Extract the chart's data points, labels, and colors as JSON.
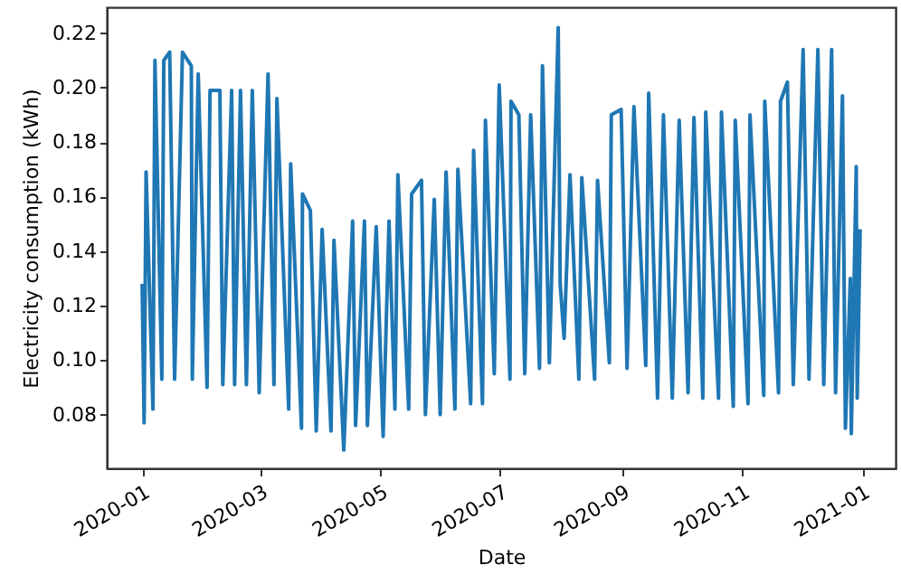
{
  "chart_data": {
    "type": "line",
    "xlabel": "Date",
    "ylabel": "Electricity consumption (kWh)",
    "xlim": [
      "2019-12-14",
      "2021-01-18"
    ],
    "xticks": [
      "2020-01",
      "2020-03",
      "2020-05",
      "2020-07",
      "2020-09",
      "2020-11",
      "2021-01"
    ],
    "ylim": [
      0.0603,
      0.2295
    ],
    "yticks": [
      0.08,
      {
        "value": 0.1,
        "label": "0.10"
      },
      0.12,
      0.14,
      0.16,
      0.18,
      {
        "value": 0.2,
        "label": "0.20"
      },
      0.22
    ],
    "grid": false,
    "line_style": "solid",
    "x": [
      "2020-01-01T00:00",
      "2020-01-02T00:00",
      "2020-01-03T00:00",
      "2020-01-06T12:00",
      "2020-01-07T12:00",
      "2020-01-11T00:00",
      "2020-01-12T00:00",
      "2020-01-15T00:00",
      "2020-01-17T12:00",
      "2020-01-21T12:00",
      "2020-01-26T00:00",
      "2020-01-26T12:00",
      "2020-01-29T12:00",
      "2020-02-03T00:00",
      "2020-02-04T12:00",
      "2020-02-09T12:00",
      "2020-02-11T00:00",
      "2020-02-15T12:00",
      "2020-02-17T00:00",
      "2020-02-20T00:00",
      "2020-02-23T00:00",
      "2020-02-26T00:00",
      "2020-02-29T12:00",
      "2020-03-05T00:00",
      "2020-03-08T00:00",
      "2020-03-09T12:00",
      "2020-03-15T12:00",
      "2020-03-16T12:00",
      "2020-03-22T00:00",
      "2020-03-22T12:00",
      "2020-03-26T12:00",
      "2020-03-29T12:00",
      "2020-04-01T12:00",
      "2020-04-06T00:00",
      "2020-04-07T12:00",
      "2020-04-12T12:00",
      "2020-04-17T00:00",
      "2020-04-18T12:00",
      "2020-04-23T00:00",
      "2020-04-24T12:00",
      "2020-04-29T00:00",
      "2020-05-02T12:00",
      "2020-05-05T12:00",
      "2020-05-08T12:00",
      "2020-05-10T00:00",
      "2020-05-15T12:00",
      "2020-05-17T00:00",
      "2020-05-22T00:00",
      "2020-05-24T00:00",
      "2020-05-28T12:00",
      "2020-05-31T12:00",
      "2020-06-03T12:00",
      "2020-06-08T00:00",
      "2020-06-09T12:00",
      "2020-06-16T00:00",
      "2020-06-17T12:00",
      "2020-06-22T00:00",
      "2020-06-23T12:00",
      "2020-06-28T00:00",
      "2020-06-30T12:00",
      "2020-07-06T00:00",
      "2020-07-06T12:00",
      "2020-07-10T12:00",
      "2020-07-13T12:00",
      "2020-07-16T12:00",
      "2020-07-21T00:00",
      "2020-07-22T12:00",
      "2020-07-26T00:00",
      "2020-07-30T12:00",
      "2020-07-31T12:00",
      "2020-08-02T12:00",
      "2020-08-05T12:00",
      "2020-08-10T00:00",
      "2020-08-11T12:00",
      "2020-08-18T00:00",
      "2020-08-19T12:00",
      "2020-08-25T12:00",
      "2020-08-26T12:00",
      "2020-08-31T12:00",
      "2020-09-03T12:00",
      "2020-09-07T00:00",
      "2020-09-13T00:00",
      "2020-09-14T12:00",
      "2020-09-19T00:00",
      "2020-09-22T00:00",
      "2020-09-26T12:00",
      "2020-09-30T00:00",
      "2020-10-04T12:00",
      "2020-10-07T12:00",
      "2020-10-12T00:00",
      "2020-10-13T12:00",
      "2020-10-20T00:00",
      "2020-10-21T12:00",
      "2020-10-27T12:00",
      "2020-10-28T12:00",
      "2020-11-04T00:00",
      "2020-11-05T00:00",
      "2020-11-12T00:00",
      "2020-11-12T12:00",
      "2020-11-19T12:00",
      "2020-11-20T12:00",
      "2020-11-24T00:00",
      "2020-11-27T00:00",
      "2020-12-02T00:00",
      "2020-12-05T00:00",
      "2020-12-09T12:00",
      "2020-12-12T12:00",
      "2020-12-16T12:00",
      "2020-12-18T12:00",
      "2020-12-22T00:00",
      "2020-12-23T12:00",
      "2020-12-26T00:00",
      "2020-12-26T12:00",
      "2020-12-29T00:00",
      "2020-12-29T12:00",
      "2020-12-31T00:00"
    ],
    "series": [
      {
        "color": "#1f77b4",
        "values": [
          0.128,
          0.077,
          0.169,
          0.082,
          0.21,
          0.093,
          0.21,
          0.213,
          0.093,
          0.213,
          0.208,
          0.093,
          0.205,
          0.09,
          0.199,
          0.199,
          0.091,
          0.199,
          0.091,
          0.199,
          0.091,
          0.199,
          0.088,
          0.205,
          0.091,
          0.196,
          0.082,
          0.172,
          0.075,
          0.161,
          0.155,
          0.074,
          0.148,
          0.074,
          0.144,
          0.067,
          0.151,
          0.076,
          0.151,
          0.076,
          0.149,
          0.072,
          0.151,
          0.082,
          0.168,
          0.082,
          0.161,
          0.166,
          0.08,
          0.159,
          0.08,
          0.169,
          0.082,
          0.17,
          0.084,
          0.177,
          0.084,
          0.188,
          0.095,
          0.201,
          0.093,
          0.195,
          0.19,
          0.095,
          0.19,
          0.097,
          0.208,
          0.099,
          0.222,
          0.128,
          0.108,
          0.168,
          0.093,
          0.167,
          0.093,
          0.166,
          0.099,
          0.19,
          0.192,
          0.097,
          0.193,
          0.098,
          0.198,
          0.086,
          0.19,
          0.086,
          0.188,
          0.088,
          0.189,
          0.086,
          0.191,
          0.086,
          0.191,
          0.083,
          0.188,
          0.084,
          0.19,
          0.087,
          0.195,
          0.088,
          0.195,
          0.202,
          0.091,
          0.214,
          0.093,
          0.214,
          0.091,
          0.214,
          0.088,
          0.197,
          0.075,
          0.13,
          0.073,
          0.171,
          0.086,
          0.148
        ]
      }
    ]
  }
}
